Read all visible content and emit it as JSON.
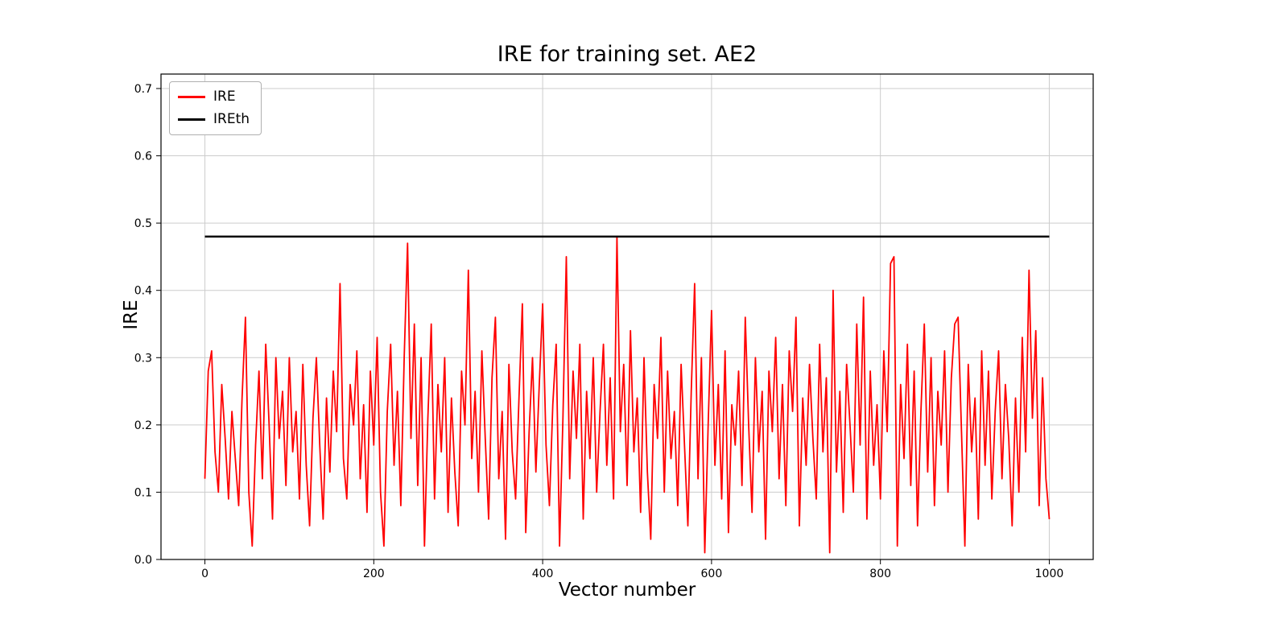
{
  "figure": {
    "background": "#ffffff"
  },
  "chart_data": {
    "type": "line",
    "title": "IRE for training set. AE2",
    "xlabel": "Vector number",
    "ylabel": "IRE",
    "xlim": [
      -52,
      1052
    ],
    "ylim": [
      0,
      0.7215
    ],
    "xticks": [
      0,
      200,
      400,
      600,
      800,
      1000
    ],
    "xticklabels": [
      "0",
      "200",
      "400",
      "600",
      "800",
      "1000"
    ],
    "yticks": [
      0.0,
      0.1,
      0.2,
      0.3,
      0.4,
      0.5,
      0.6,
      0.7
    ],
    "yticklabels": [
      "0.0",
      "0.1",
      "0.2",
      "0.3",
      "0.4",
      "0.5",
      "0.6",
      "0.7"
    ],
    "grid": true,
    "grid_color": "#cccccc",
    "legend": {
      "position": "upper-left",
      "entries": [
        {
          "label": "IRE",
          "color": "#ff0000"
        },
        {
          "label": "IREth",
          "color": "#000000"
        }
      ]
    },
    "series": [
      {
        "name": "IRE",
        "color": "#ff0000",
        "line_width": 1.8,
        "x_start": 0,
        "x_step": 4,
        "values": [
          0.12,
          0.28,
          0.31,
          0.16,
          0.1,
          0.26,
          0.18,
          0.09,
          0.22,
          0.15,
          0.08,
          0.24,
          0.36,
          0.1,
          0.02,
          0.17,
          0.28,
          0.12,
          0.32,
          0.2,
          0.06,
          0.3,
          0.18,
          0.25,
          0.11,
          0.3,
          0.16,
          0.22,
          0.09,
          0.29,
          0.14,
          0.05,
          0.21,
          0.3,
          0.17,
          0.06,
          0.24,
          0.13,
          0.28,
          0.19,
          0.41,
          0.15,
          0.09,
          0.26,
          0.2,
          0.31,
          0.12,
          0.23,
          0.07,
          0.28,
          0.17,
          0.33,
          0.1,
          0.02,
          0.22,
          0.32,
          0.14,
          0.25,
          0.08,
          0.3,
          0.47,
          0.18,
          0.35,
          0.11,
          0.3,
          0.02,
          0.21,
          0.35,
          0.09,
          0.26,
          0.16,
          0.3,
          0.07,
          0.24,
          0.13,
          0.05,
          0.28,
          0.2,
          0.43,
          0.15,
          0.25,
          0.1,
          0.31,
          0.18,
          0.06,
          0.27,
          0.36,
          0.12,
          0.22,
          0.03,
          0.29,
          0.16,
          0.09,
          0.24,
          0.38,
          0.04,
          0.19,
          0.3,
          0.13,
          0.26,
          0.38,
          0.17,
          0.08,
          0.23,
          0.32,
          0.02,
          0.21,
          0.45,
          0.12,
          0.28,
          0.18,
          0.32,
          0.06,
          0.25,
          0.15,
          0.3,
          0.1,
          0.22,
          0.32,
          0.14,
          0.27,
          0.09,
          0.48,
          0.19,
          0.29,
          0.11,
          0.34,
          0.16,
          0.24,
          0.07,
          0.3,
          0.13,
          0.03,
          0.26,
          0.18,
          0.33,
          0.1,
          0.28,
          0.15,
          0.22,
          0.08,
          0.29,
          0.17,
          0.05,
          0.25,
          0.41,
          0.12,
          0.3,
          0.01,
          0.2,
          0.37,
          0.14,
          0.26,
          0.09,
          0.31,
          0.04,
          0.23,
          0.17,
          0.28,
          0.11,
          0.36,
          0.2,
          0.07,
          0.3,
          0.16,
          0.25,
          0.03,
          0.28,
          0.19,
          0.33,
          0.12,
          0.26,
          0.08,
          0.31,
          0.22,
          0.36,
          0.05,
          0.24,
          0.14,
          0.29,
          0.18,
          0.09,
          0.32,
          0.16,
          0.27,
          0.01,
          0.4,
          0.13,
          0.25,
          0.07,
          0.29,
          0.2,
          0.1,
          0.35,
          0.17,
          0.39,
          0.06,
          0.28,
          0.14,
          0.23,
          0.09,
          0.31,
          0.19,
          0.44,
          0.45,
          0.02,
          0.26,
          0.15,
          0.32,
          0.11,
          0.28,
          0.05,
          0.22,
          0.35,
          0.13,
          0.3,
          0.08,
          0.25,
          0.17,
          0.31,
          0.1,
          0.27,
          0.35,
          0.36,
          0.19,
          0.02,
          0.29,
          0.16,
          0.24,
          0.06,
          0.31,
          0.14,
          0.28,
          0.09,
          0.22,
          0.31,
          0.12,
          0.26,
          0.18,
          0.05,
          0.24,
          0.1,
          0.33,
          0.16,
          0.43,
          0.21,
          0.34,
          0.08,
          0.27,
          0.12,
          0.06
        ]
      },
      {
        "name": "IREth",
        "color": "#000000",
        "line_width": 2.5,
        "type": "hline",
        "y": 0.48,
        "x_range": [
          0,
          1000
        ]
      }
    ]
  }
}
